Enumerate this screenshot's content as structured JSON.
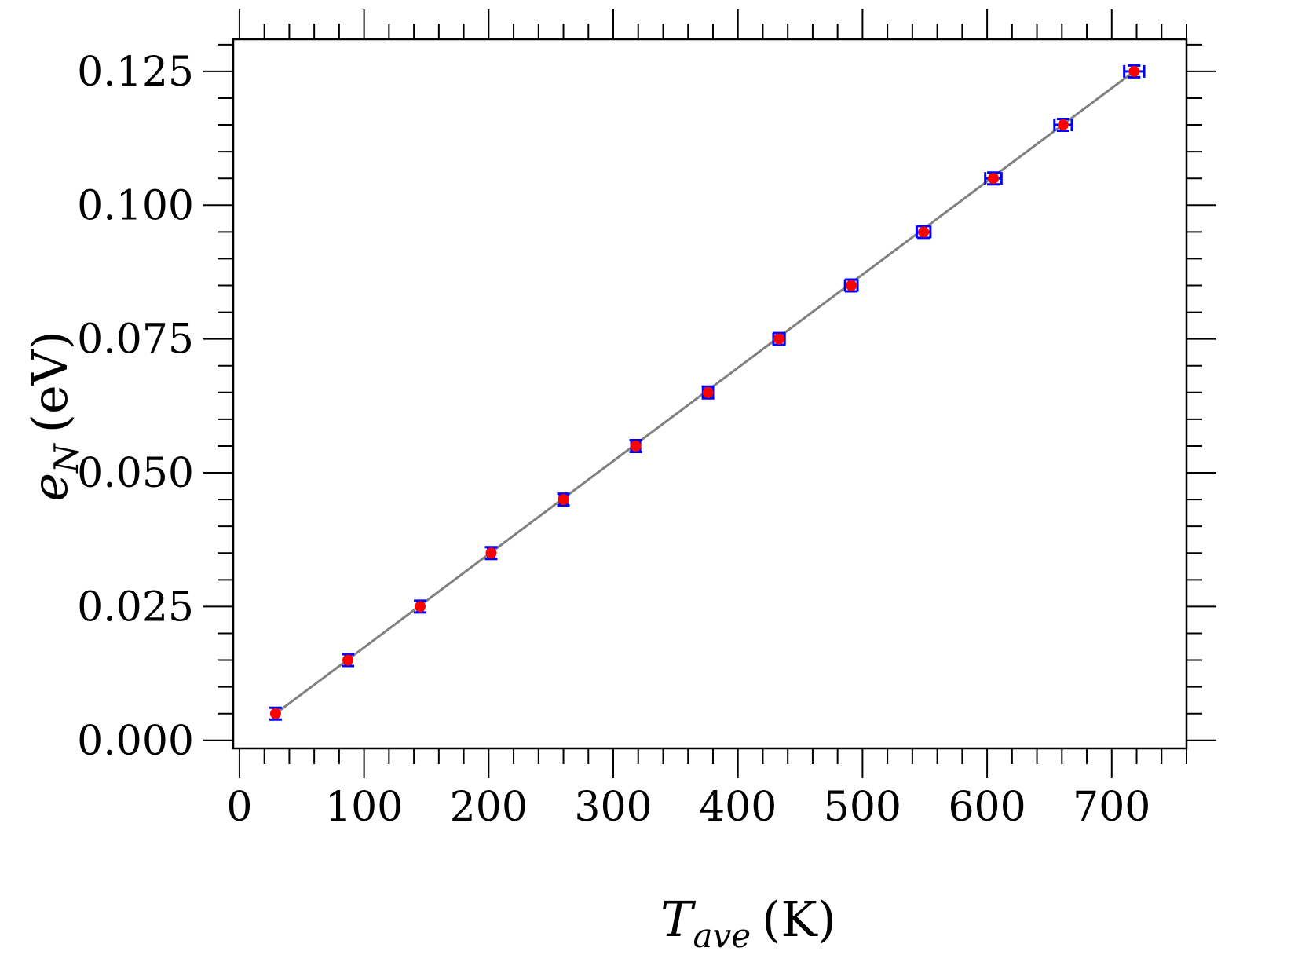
{
  "chart_data": {
    "type": "scatter",
    "xlabel": {
      "symbol": "T",
      "subscript": "ave",
      "unit": "(K)"
    },
    "ylabel": {
      "symbol": "e",
      "subscript": "N",
      "unit": "(eV)"
    },
    "xlim": [
      -5,
      760
    ],
    "ylim": [
      -0.0015,
      0.131
    ],
    "x_ticks": [
      0,
      100,
      200,
      300,
      400,
      500,
      600,
      700
    ],
    "x_tick_labels": [
      "0",
      "100",
      "200",
      "300",
      "400",
      "500",
      "600",
      "700"
    ],
    "x_minor_step": 20,
    "y_ticks": [
      0.0,
      0.025,
      0.05,
      0.075,
      0.1,
      0.125
    ],
    "y_tick_labels": [
      "0.000",
      "0.025",
      "0.050",
      "0.075",
      "0.100",
      "0.125"
    ],
    "y_minor_step": 0.005,
    "grid": false,
    "colors": {
      "marker": "#ff0000",
      "errorbar": "#0000ff",
      "fit_line": "#808080"
    },
    "series": [
      {
        "marker": "circle",
        "x": [
          29,
          87,
          145,
          202,
          260,
          318,
          376,
          433,
          491,
          549,
          605,
          661,
          718
        ],
        "y": [
          0.005,
          0.015,
          0.025,
          0.035,
          0.045,
          0.055,
          0.065,
          0.075,
          0.085,
          0.095,
          0.105,
          0.115,
          0.125
        ],
        "xerr": [
          1.5,
          2,
          2,
          2.5,
          3,
          3.5,
          4,
          4.5,
          5,
          5.5,
          6.5,
          7,
          8
        ],
        "yerr": [
          0.0011,
          0.0011,
          0.0011,
          0.0011,
          0.0011,
          0.0011,
          0.0011,
          0.0011,
          0.0011,
          0.0011,
          0.0011,
          0.0011,
          0.0011
        ]
      }
    ],
    "fit_line": {
      "x": [
        29,
        718
      ],
      "y": [
        0.005,
        0.125
      ]
    }
  }
}
